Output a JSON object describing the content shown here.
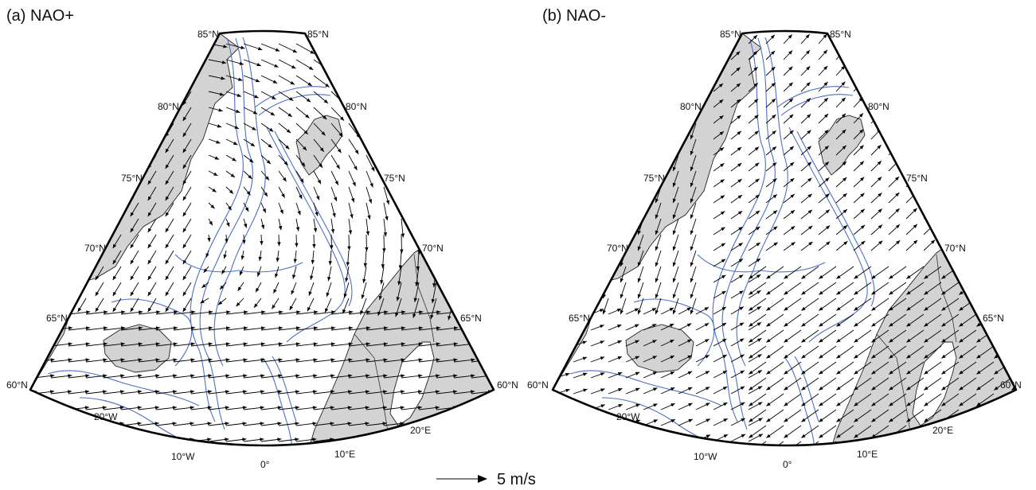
{
  "panels": [
    {
      "id": "nao-plus",
      "title": "(a) NAO+",
      "lat_labels_left": [
        "85°N",
        "80°N",
        "75°N",
        "70°N",
        "65°N",
        "60°N"
      ],
      "lat_labels_right": [
        "85°N",
        "80°N",
        "75°N",
        "70°N",
        "65°N",
        "60°N"
      ],
      "lon_labels": [
        "20°W",
        "10°W",
        "0°",
        "10°E",
        "20°E"
      ]
    },
    {
      "id": "nao-minus",
      "title": "(b) NAO-",
      "lat_labels_left": [
        "85°N",
        "80°N",
        "75°N",
        "70°N",
        "65°N",
        "60°N"
      ],
      "lat_labels_right": [
        "85°N",
        "80°N",
        "75°N",
        "70°N",
        "65°N",
        "60°N"
      ],
      "lon_labels": [
        "20°W",
        "10°W",
        "0°",
        "10°E",
        "20°E"
      ]
    }
  ],
  "scale": {
    "label": "5 m/s",
    "value_ms": 5
  },
  "colors": {
    "land": "#d3d3d3",
    "contour": "#4f6fc8",
    "arrow": "#000000",
    "frame": "#000000"
  }
}
